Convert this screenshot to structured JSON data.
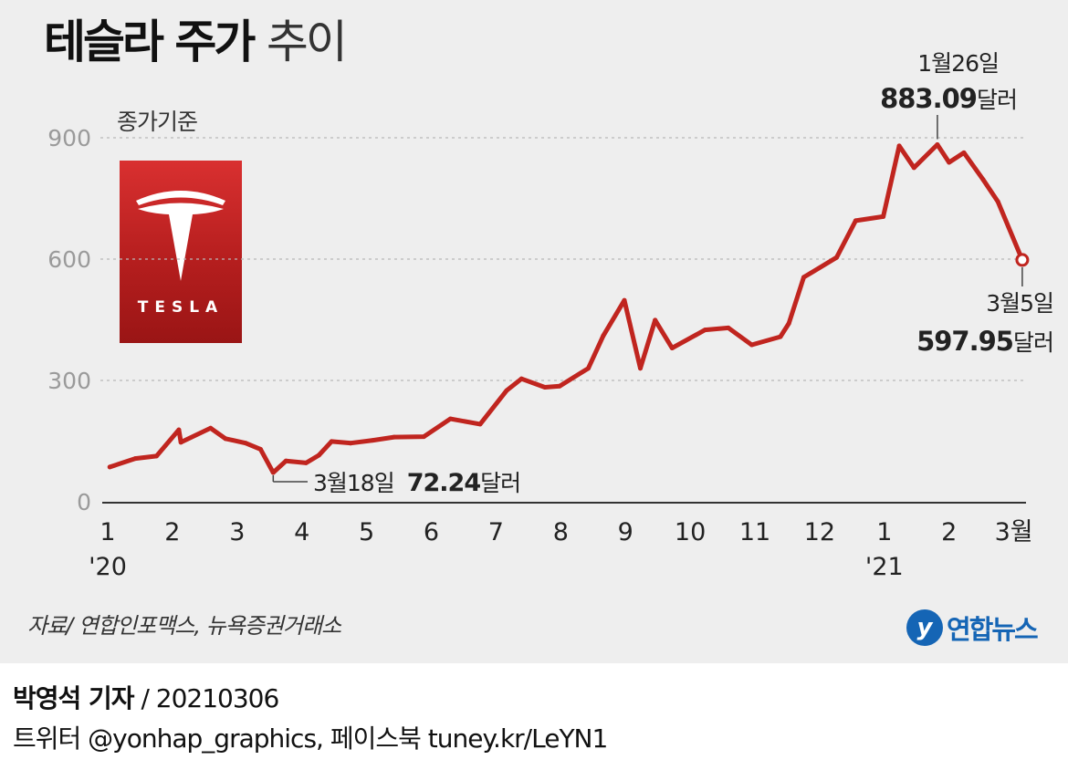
{
  "header": {
    "title_strong": "테슬라 주가",
    "title_light": "추이",
    "basis_label": "종가기준"
  },
  "logo": {
    "wordmark": "TESLA"
  },
  "chart_data": {
    "type": "line",
    "title": "테슬라 주가 추이",
    "ylabel": "",
    "unit": "달러",
    "ylim": [
      0,
      1000
    ],
    "y_ticks": [
      0,
      300,
      600,
      900
    ],
    "x_tick_labels": [
      "1",
      "2",
      "3",
      "4",
      "5",
      "6",
      "7",
      "8",
      "9",
      "10",
      "11",
      "12",
      "1",
      "2",
      "3월"
    ],
    "year_labels": [
      {
        "label": "'20",
        "at_month": "2020-01"
      },
      {
        "label": "'21",
        "at_month": "2021-01"
      }
    ],
    "grid": true,
    "series": [
      {
        "color": "#c0251f",
        "points": [
          [
            "2020-01-02",
            86
          ],
          [
            "2020-01-14",
            107
          ],
          [
            "2020-01-24",
            113
          ],
          [
            "2020-02-04",
            178
          ],
          [
            "2020-02-05",
            147
          ],
          [
            "2020-02-19",
            182
          ],
          [
            "2020-02-26",
            156
          ],
          [
            "2020-03-05",
            145
          ],
          [
            "2020-03-12",
            130
          ],
          [
            "2020-03-18",
            72.24
          ],
          [
            "2020-03-24",
            101
          ],
          [
            "2020-04-03",
            96
          ],
          [
            "2020-04-09",
            115
          ],
          [
            "2020-04-15",
            149
          ],
          [
            "2020-04-24",
            145
          ],
          [
            "2020-05-04",
            152
          ],
          [
            "2020-05-14",
            160
          ],
          [
            "2020-05-28",
            161
          ],
          [
            "2020-06-10",
            205
          ],
          [
            "2020-06-24",
            192
          ],
          [
            "2020-07-06",
            275
          ],
          [
            "2020-07-13",
            304
          ],
          [
            "2020-07-24",
            283
          ],
          [
            "2020-07-31",
            286
          ],
          [
            "2020-08-14",
            330
          ],
          [
            "2020-08-21",
            410
          ],
          [
            "2020-08-31",
            498
          ],
          [
            "2020-09-08",
            330
          ],
          [
            "2020-09-15",
            449
          ],
          [
            "2020-09-23",
            380
          ],
          [
            "2020-10-08",
            425
          ],
          [
            "2020-10-19",
            430
          ],
          [
            "2020-10-30",
            388
          ],
          [
            "2020-11-13",
            408
          ],
          [
            "2020-11-17",
            441
          ],
          [
            "2020-11-24",
            555
          ],
          [
            "2020-12-09",
            604
          ],
          [
            "2020-12-18",
            695
          ],
          [
            "2020-12-31",
            705
          ],
          [
            "2021-01-08",
            880
          ],
          [
            "2021-01-15",
            826
          ],
          [
            "2021-01-26",
            883.09
          ],
          [
            "2021-02-01",
            839
          ],
          [
            "2021-02-08",
            863
          ],
          [
            "2021-02-17",
            797
          ],
          [
            "2021-02-24",
            742
          ],
          [
            "2021-03-05",
            597.95
          ]
        ]
      }
    ],
    "annotations": [
      {
        "date_label": "3월18일",
        "value_label": "72.24",
        "unit": "달러",
        "date": "2020-03-18",
        "value": 72.24,
        "kind": "low"
      },
      {
        "date_label": "1월26일",
        "value_label": "883.09",
        "unit": "달러",
        "date": "2021-01-26",
        "value": 883.09,
        "kind": "high"
      },
      {
        "date_label": "3월5일",
        "value_label": "597.95",
        "unit": "달러",
        "date": "2021-03-05",
        "value": 597.95,
        "kind": "last"
      }
    ]
  },
  "source_text": "자료/ 연합인포맥스, 뉴욕증권거래소",
  "brand": {
    "icon_glyph": "y",
    "name": "연합뉴스"
  },
  "footer": {
    "reporter": "박영석 기자",
    "separator": " /  ",
    "date": "20210306",
    "social": "트위터 @yonhap_graphics, 페이스북 tuney.kr/LeYN1"
  },
  "colors": {
    "line": "#c0251f",
    "logo_red": "#c62a2a",
    "brand_blue": "#1565b5",
    "panel": "#eeeeee"
  }
}
